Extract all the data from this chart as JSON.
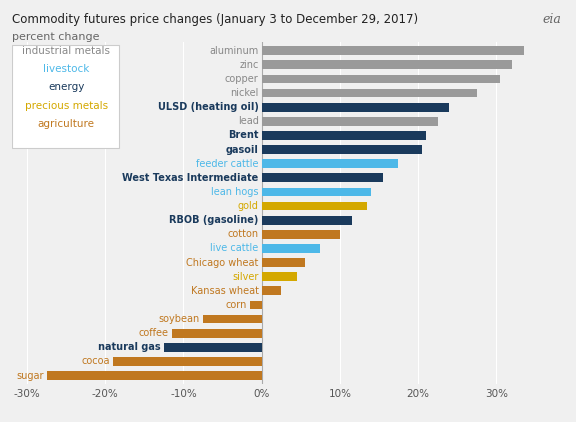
{
  "title": "Commodity futures price changes (January 3 to December 29, 2017)",
  "subtitle": "percent change",
  "categories": [
    "sugar",
    "cocoa",
    "natural gas",
    "coffee",
    "soybean",
    "corn",
    "Kansas wheat",
    "silver",
    "Chicago wheat",
    "live cattle",
    "cotton",
    "RBOB (gasoline)",
    "gold",
    "lean hogs",
    "West Texas Intermediate",
    "feeder cattle",
    "gasoil",
    "Brent",
    "lead",
    "ULSD (heating oil)",
    "nickel",
    "copper",
    "zinc",
    "aluminum"
  ],
  "values": [
    -27.5,
    -19.0,
    -12.5,
    -11.5,
    -7.5,
    -1.5,
    2.5,
    4.5,
    5.5,
    7.5,
    10.0,
    11.5,
    13.5,
    14.0,
    15.5,
    17.5,
    20.5,
    21.0,
    22.5,
    24.0,
    27.5,
    30.5,
    32.0,
    33.5
  ],
  "bar_colors": [
    "#c07820",
    "#c07820",
    "#1a3a5c",
    "#c07820",
    "#c07820",
    "#c07820",
    "#c07820",
    "#d4a800",
    "#c07820",
    "#4db8e8",
    "#c07820",
    "#1a3a5c",
    "#d4a800",
    "#4db8e8",
    "#1a3a5c",
    "#4db8e8",
    "#1a3a5c",
    "#1a3a5c",
    "#9a9a9a",
    "#1a3a5c",
    "#9a9a9a",
    "#9a9a9a",
    "#9a9a9a",
    "#9a9a9a"
  ],
  "bold_labels": [
    "ULSD (heating oil)",
    "Brent",
    "gasoil",
    "West Texas Intermediate",
    "RBOB (gasoline)",
    "natural gas"
  ],
  "label_colors": {
    "aluminum": "#888888",
    "zinc": "#888888",
    "copper": "#888888",
    "nickel": "#888888",
    "lead": "#888888",
    "ULSD (heating oil)": "#1a3a5c",
    "Brent": "#1a3a5c",
    "gasoil": "#1a3a5c",
    "West Texas Intermediate": "#1a3a5c",
    "RBOB (gasoline)": "#1a3a5c",
    "natural gas": "#1a3a5c",
    "feeder cattle": "#4db8e8",
    "lean hogs": "#4db8e8",
    "live cattle": "#4db8e8",
    "gold": "#d4a800",
    "silver": "#d4a800",
    "cotton": "#c07820",
    "Chicago wheat": "#c07820",
    "Kansas wheat": "#c07820",
    "corn": "#c07820",
    "soybean": "#c07820",
    "coffee": "#c07820",
    "cocoa": "#c07820",
    "sugar": "#c07820"
  },
  "xlim": [
    -32,
    38
  ],
  "xticks": [
    -30,
    -20,
    -10,
    0,
    10,
    20,
    30
  ],
  "xtick_labels": [
    "-30%",
    "-20%",
    "-10%",
    "0%",
    "10%",
    "20%",
    "30%"
  ],
  "legend_items": [
    {
      "label": "industrial metals",
      "color": "#888888"
    },
    {
      "label": "livestock",
      "color": "#4db8e8"
    },
    {
      "label": "energy",
      "color": "#1a3a5c"
    },
    {
      "label": "precious metals",
      "color": "#d4a800"
    },
    {
      "label": "agriculture",
      "color": "#c07820"
    }
  ],
  "bg_color": "#f0f0f0",
  "bar_height": 0.62
}
